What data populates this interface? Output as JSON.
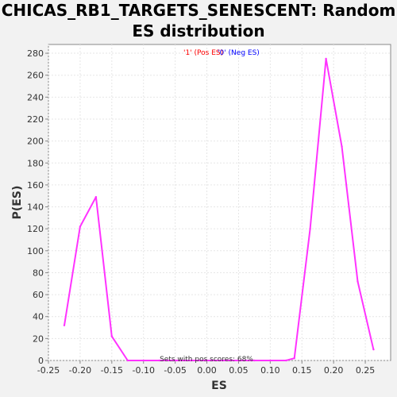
{
  "chart_data": {
    "type": "line",
    "title_line1": "CHICAS_RB1_TARGETS_SENESCENT: Random",
    "title_line2": "ES distribution",
    "xlabel": "ES",
    "ylabel": "P(ES)",
    "xlim": [
      -0.25,
      0.29
    ],
    "ylim": [
      0,
      288
    ],
    "xticks": [
      -0.25,
      -0.2,
      -0.15,
      -0.1,
      -0.05,
      0.0,
      0.05,
      0.1,
      0.15,
      0.2,
      0.25
    ],
    "xtick_labels": [
      "-0.25",
      "-0.20",
      "-0.15",
      "-0.10",
      "-0.05",
      "0.00",
      "0.05",
      "0.10",
      "0.15",
      "0.20",
      "0.25"
    ],
    "yticks": [
      0,
      20,
      40,
      60,
      80,
      100,
      120,
      140,
      160,
      180,
      200,
      220,
      240,
      260,
      280
    ],
    "ytick_labels": [
      "0",
      "20",
      "40",
      "60",
      "80",
      "100",
      "120",
      "140",
      "160",
      "180",
      "200",
      "220",
      "240",
      "260",
      "280"
    ],
    "grid": true,
    "legend": [
      {
        "label": "'1' (Pos ES)",
        "color": "#ff0000"
      },
      {
        "label": "'0' (Neg ES)",
        "color": "#0000ff"
      }
    ],
    "legend_placement": "top-center",
    "annotation": "Sets with pos scores: 68%",
    "series": [
      {
        "color": "#ff33ff",
        "x": [
          -0.225,
          -0.2,
          -0.175,
          -0.15,
          -0.125,
          -0.1,
          -0.075,
          -0.05,
          -0.025,
          0.0,
          0.025,
          0.05,
          0.075,
          0.1,
          0.125,
          0.138,
          0.163,
          0.188,
          0.213,
          0.238,
          0.263
        ],
        "y": [
          32,
          122,
          149,
          22,
          0,
          0,
          0,
          0,
          0,
          0,
          0,
          0,
          0,
          0,
          0,
          2,
          120,
          275,
          195,
          72,
          10
        ]
      }
    ]
  }
}
